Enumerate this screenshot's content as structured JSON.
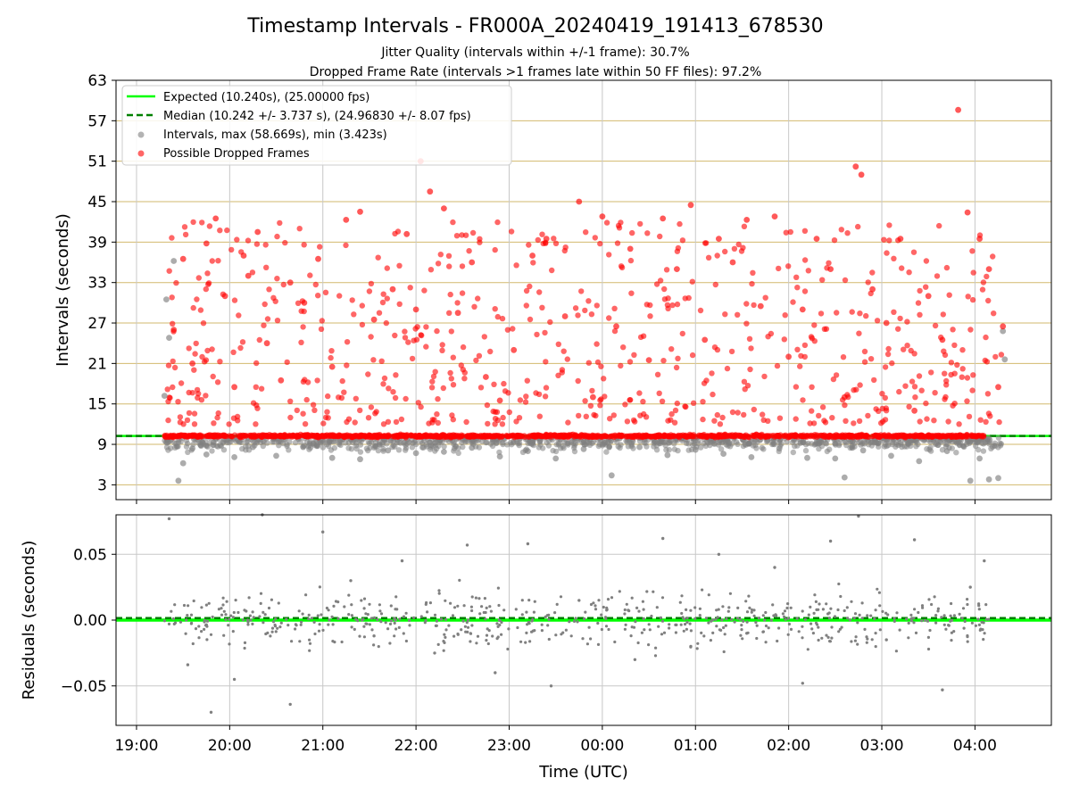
{
  "chart_data": [
    {
      "type": "scatter",
      "title": "Timestamp Intervals - FR000A_20240419_191413_678530",
      "subtitles": [
        "Jitter Quality (intervals within +/-1 frame): 30.7%",
        "Dropped Frame Rate (intervals >1 frames late within 50 FF files): 97.2%"
      ],
      "ylabel": "Intervals (seconds)",
      "xlabel": "",
      "ylim": [
        0.8,
        63
      ],
      "yticks": [
        3,
        9,
        15,
        21,
        27,
        33,
        39,
        45,
        51,
        57,
        63
      ],
      "ytick_labels": [
        "3",
        "9",
        "15",
        "21",
        "27",
        "33",
        "39",
        "45",
        "51",
        "57",
        "63"
      ],
      "grid": true,
      "legend_position": "top-left",
      "reference_lines": [
        {
          "name": "Expected (10.240s), (25.00000 fps)",
          "y": 10.24,
          "color": "#00ff00",
          "style": "solid"
        },
        {
          "name": "Median (10.242 +/- 3.737 s), (24.96830 +/- 8.07 fps)",
          "y": 10.242,
          "color": "#008000",
          "style": "dashed"
        }
      ],
      "series": [
        {
          "name": "Intervals, max (58.669s), min (3.423s)",
          "color": "#808080",
          "x": [
            19.3,
            19.32,
            19.35,
            19.4,
            19.45,
            19.5,
            19.6,
            19.75,
            19.9,
            20.05,
            20.25,
            20.5,
            20.8,
            21.1,
            21.4,
            21.7,
            22.0,
            22.3,
            22.6,
            22.9,
            23.2,
            23.5,
            23.8,
            0.1,
            0.4,
            0.7,
            1.0,
            1.3,
            1.6,
            1.9,
            2.2,
            2.5,
            2.6,
            2.8,
            3.1,
            3.4,
            3.7,
            3.95,
            4.05,
            4.15,
            4.25,
            4.3,
            4.32
          ],
          "y": [
            16.2,
            30.5,
            24.8,
            36.2,
            3.6,
            6.2,
            8.4,
            7.5,
            8.9,
            7.1,
            8.6,
            7.3,
            8.8,
            7.0,
            6.8,
            8.1,
            7.7,
            7.9,
            8.5,
            7.2,
            8.0,
            6.9,
            8.3,
            4.4,
            8.6,
            7.4,
            8.2,
            7.6,
            7.1,
            8.4,
            7.0,
            6.9,
            4.1,
            8.1,
            7.3,
            6.5,
            8.0,
            3.6,
            6.9,
            3.8,
            4.0,
            25.8,
            21.6
          ]
        },
        {
          "name": "Possible Dropped Frames",
          "color": "#ff0000",
          "x": [
            19.4,
            19.5,
            19.6,
            19.75,
            19.85,
            19.95,
            20.05,
            20.15,
            20.2,
            20.3,
            20.4,
            20.55,
            20.65,
            20.8,
            20.95,
            21.1,
            21.25,
            21.4,
            21.55,
            21.75,
            21.9,
            22.0,
            22.05,
            22.15,
            22.3,
            22.45,
            22.6,
            22.75,
            22.9,
            23.05,
            23.25,
            23.4,
            23.6,
            23.75,
            23.9,
            0.0,
            0.15,
            0.3,
            0.5,
            0.65,
            0.8,
            0.95,
            1.1,
            1.25,
            1.4,
            1.55,
            1.7,
            1.85,
            2.0,
            2.15,
            2.3,
            2.45,
            2.6,
            2.72,
            2.78,
            2.9,
            3.05,
            3.2,
            3.35,
            3.5,
            3.65,
            3.82,
            3.92,
            4.05,
            4.15,
            4.25,
            4.3
          ],
          "y": [
            26.0,
            36.5,
            21.0,
            38.8,
            42.5,
            31.0,
            17.5,
            37.0,
            34.0,
            40.5,
            24.0,
            18.5,
            33.0,
            30.0,
            36.5,
            20.5,
            42.3,
            43.5,
            27.5,
            32.0,
            40.2,
            29.0,
            51.0,
            46.5,
            44.0,
            28.5,
            36.0,
            19.0,
            15.5,
            23.0,
            37.0,
            39.5,
            28.0,
            45.0,
            16.0,
            42.8,
            26.5,
            38.0,
            21.5,
            42.5,
            35.0,
            44.5,
            24.5,
            39.5,
            36.0,
            42.3,
            29.5,
            42.8,
            22.0,
            29.0,
            39.5,
            35.0,
            16.0,
            50.2,
            49.0,
            32.0,
            27.0,
            39.5,
            14.0,
            31.0,
            24.5,
            58.6,
            43.4,
            39.5,
            35.0,
            17.5,
            26.5
          ]
        }
      ],
      "dense_band": {
        "y_center": 10.24,
        "y_spread": 0.3
      },
      "legend": [
        "Expected (10.240s), (25.00000 fps)",
        "Median (10.242 +/- 3.737 s), (24.96830 +/- 8.07 fps)",
        "Intervals, max (58.669s), min (3.423s)",
        "Possible Dropped Frames"
      ]
    },
    {
      "type": "scatter",
      "title": "",
      "ylabel": "Residuals (seconds)",
      "xlabel": "Time (UTC)",
      "ylim": [
        -0.08,
        0.08
      ],
      "yticks": [
        -0.05,
        0.0,
        0.05
      ],
      "ytick_labels": [
        "−0.05",
        "0.00",
        "0.05"
      ],
      "grid": true,
      "reference_lines": [
        {
          "name": "",
          "y": 0.0,
          "color": "#00ff00",
          "style": "solid"
        },
        {
          "name": "",
          "y": 0.0015,
          "color": "#008000",
          "style": "dashed"
        }
      ],
      "series": [
        {
          "name": "",
          "color": "#808080",
          "x": [
            19.35,
            19.55,
            19.8,
            20.05,
            20.35,
            20.65,
            21.0,
            21.3,
            21.55,
            21.85,
            22.2,
            22.55,
            22.85,
            23.2,
            23.45,
            23.75,
            0.05,
            0.35,
            0.65,
            0.95,
            1.25,
            1.55,
            1.85,
            2.15,
            2.45,
            2.75,
            3.05,
            3.35,
            3.65,
            3.95,
            4.1
          ],
          "y": [
            0.077,
            -0.034,
            -0.07,
            -0.045,
            0.08,
            -0.064,
            0.067,
            0.03,
            -0.012,
            0.045,
            -0.025,
            0.057,
            -0.04,
            0.058,
            -0.05,
            0.015,
            0.008,
            -0.03,
            0.062,
            -0.02,
            0.05,
            -0.01,
            0.04,
            -0.048,
            0.06,
            0.079,
            -0.015,
            0.061,
            -0.053,
            0.025,
            0.045
          ]
        }
      ]
    }
  ],
  "x_axis": {
    "tick_labels": [
      "19:00",
      "20:00",
      "21:00",
      "22:00",
      "23:00",
      "00:00",
      "01:00",
      "02:00",
      "03:00",
      "04:00"
    ],
    "xlim_hours_since_19": [
      -0.22,
      9.82
    ]
  },
  "colors": {
    "intervals": "#808080",
    "dropped": "#ff0000",
    "expected": "#00ff00",
    "median": "#008000",
    "ygrid_top": "#d2b96e",
    "grid": "#c8c8c8"
  }
}
